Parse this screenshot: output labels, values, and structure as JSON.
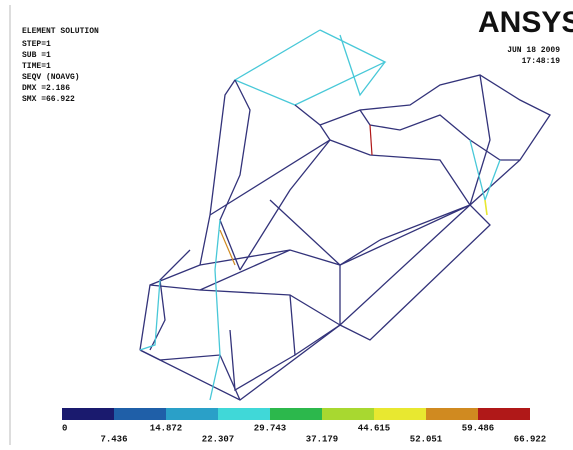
{
  "header": {
    "title": "ELEMENT SOLUTION",
    "step": "STEP=1",
    "substep": "SUB =1",
    "time": "TIME=1",
    "quantity": "SEQV     (NOAVG)",
    "dmx": "DMX =2.186",
    "smx": "SMX =66.922",
    "logo": "ANSYS",
    "date": "JUN 18 2009",
    "clock": "17:48:19"
  },
  "legend": {
    "labels": [
      "0",
      "7.436",
      "14.872",
      "22.307",
      "29.743",
      "37.179",
      "44.615",
      "52.051",
      "59.486",
      "66.922"
    ],
    "colors": [
      "#1a1a6e",
      "#1f5fa8",
      "#2aa0c8",
      "#40d8d8",
      "#2cb84c",
      "#a8d830",
      "#e8e830",
      "#d08a20",
      "#b01818"
    ]
  }
}
